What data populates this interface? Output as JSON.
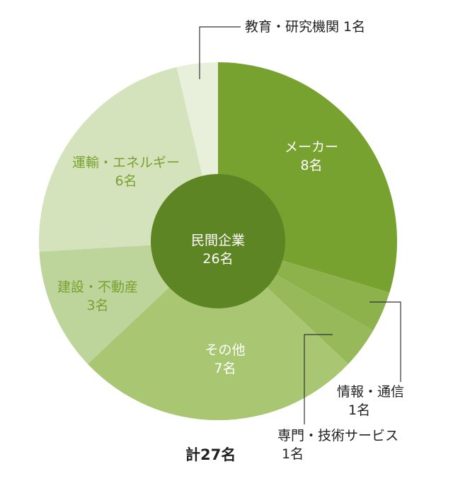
{
  "chart_data": {
    "type": "pie",
    "subtype": "donut",
    "categories": [
      "メーカー",
      "情報・通信",
      "専門・技術サービス",
      "その他",
      "建設・不動産",
      "運輸・エネルギー",
      "教育・研究機関"
    ],
    "values": [
      8,
      1,
      1,
      7,
      3,
      6,
      1
    ],
    "value_labels": [
      "8名",
      "1名",
      "1名",
      "7名",
      "3名",
      "6名",
      "1名"
    ],
    "center": {
      "label": "民間企業",
      "value": "26名",
      "number": 26
    },
    "total_label": "計27名",
    "total": 27,
    "colors": [
      "#78a22f",
      "#8db24c",
      "#98b95a",
      "#a9c673",
      "#bdd49a",
      "#d4e3bb",
      "#e8f0dc"
    ],
    "center_color": "#5e8524",
    "inside_label_colors": [
      "#ffffff",
      null,
      null,
      "#ffffff",
      "#78a22f",
      "#78a22f",
      null
    ],
    "outside_label_color": "#222222",
    "leader_color": "#333333"
  }
}
